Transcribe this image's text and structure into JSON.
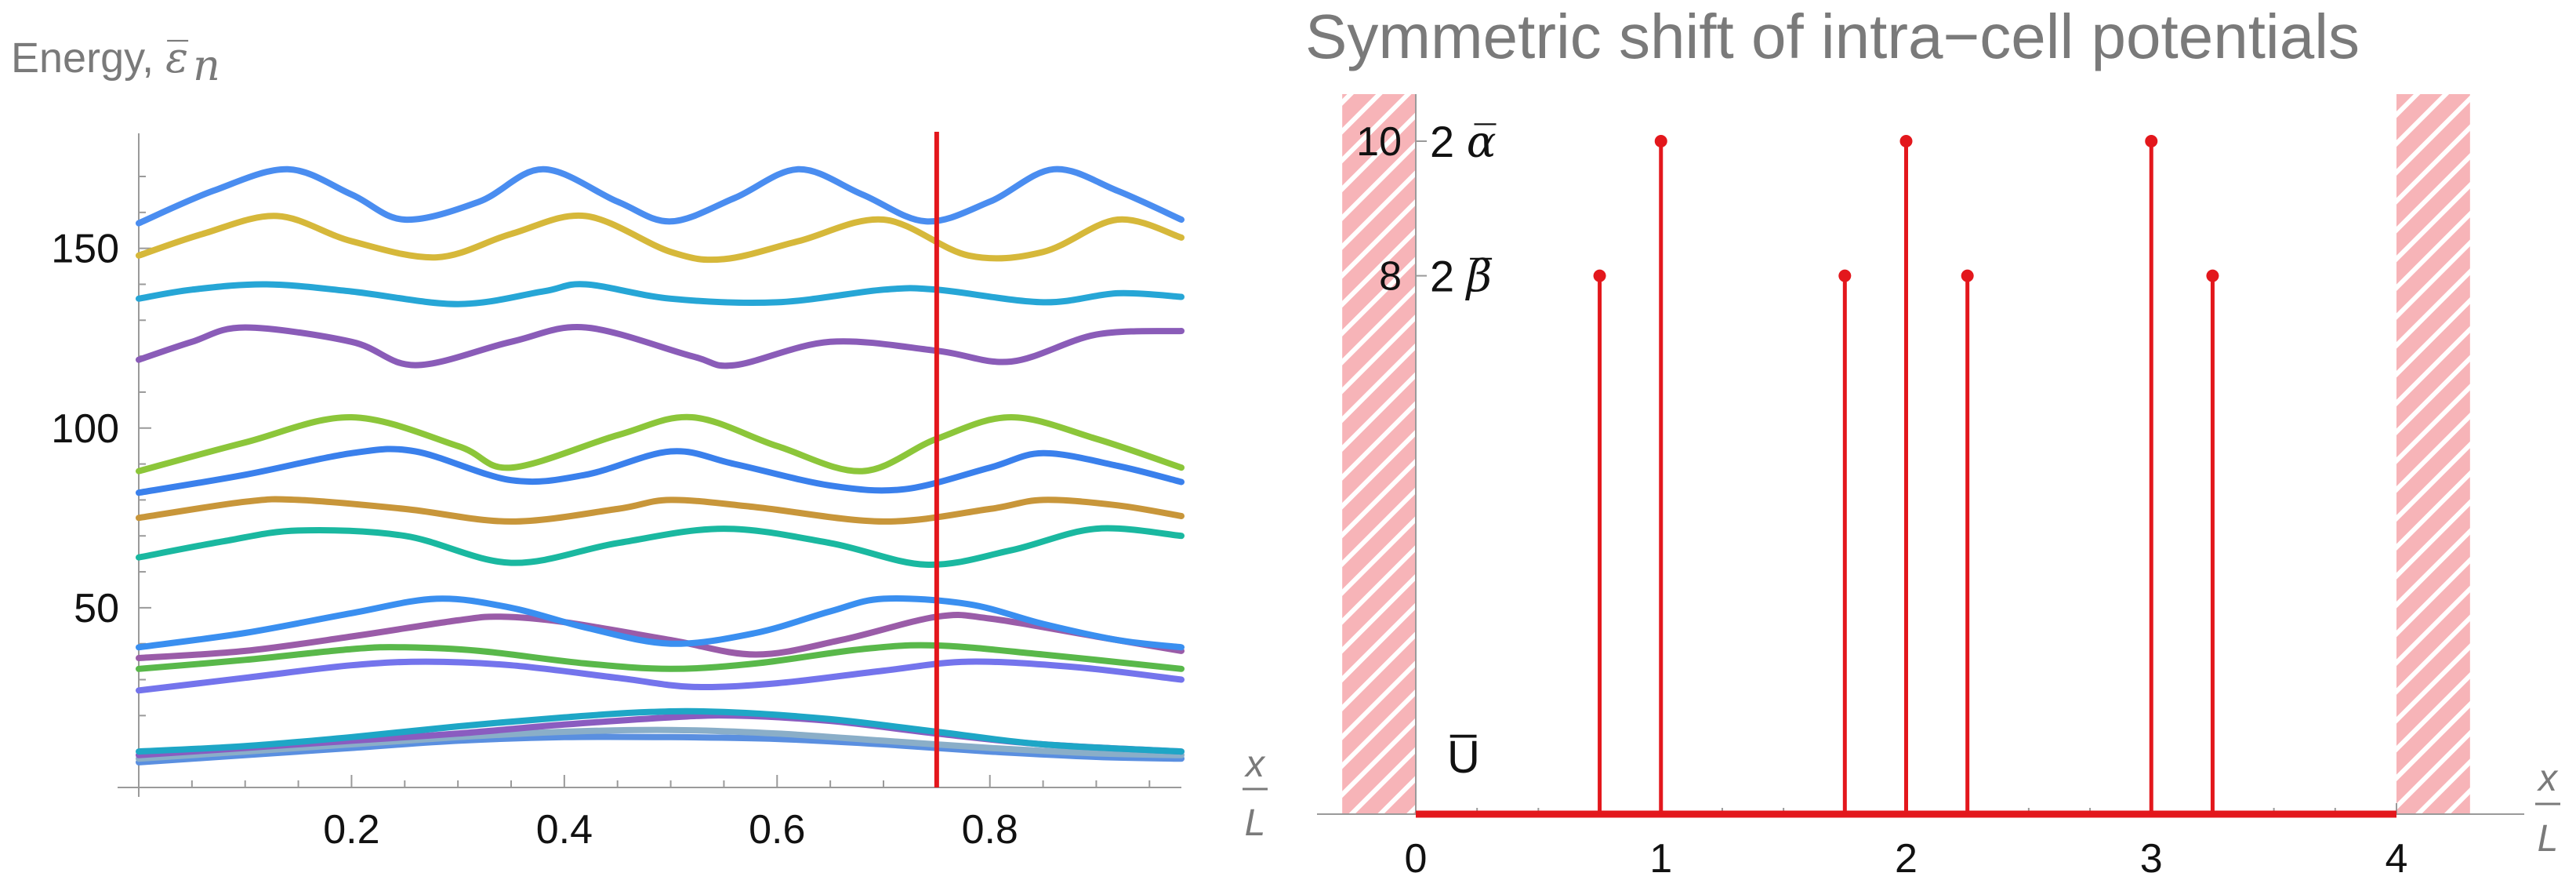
{
  "colors": {
    "red": "#e3171c",
    "wall": "#f7b4b8",
    "axis": "#9a9a9a",
    "text_gray": "#7a7a7a"
  },
  "chart_data": [
    {
      "type": "line",
      "title": "",
      "ylabel_prefix": "Energy, ",
      "ylabel_symbol": "ε̅",
      "ylabel_sub": "n",
      "xlabel_num": "x",
      "xlabel_den": "L",
      "xlim": [
        0,
        0.98
      ],
      "ylim": [
        0,
        182
      ],
      "xticks": [
        0.2,
        0.4,
        0.6,
        0.8
      ],
      "xtick_labels": [
        "0.2",
        "0.4",
        "0.6",
        "0.8"
      ],
      "yticks": [
        50,
        100,
        150
      ],
      "ytick_labels": [
        "50",
        "100",
        "150"
      ],
      "marker_x": 0.75,
      "marker_color": "#e3171c",
      "series": [
        {
          "name": "band1",
          "color": "#5a8fe0",
          "points": [
            [
              0,
              7
            ],
            [
              0.1,
              9
            ],
            [
              0.2,
              11
            ],
            [
              0.3,
              13
            ],
            [
              0.4,
              14
            ],
            [
              0.5,
              14
            ],
            [
              0.6,
              13.5
            ],
            [
              0.7,
              12
            ],
            [
              0.8,
              10
            ],
            [
              0.9,
              8.5
            ],
            [
              0.98,
              8
            ]
          ]
        },
        {
          "name": "band2",
          "color": "#8aaec8",
          "points": [
            [
              0,
              8
            ],
            [
              0.1,
              10
            ],
            [
              0.2,
              12
            ],
            [
              0.3,
              14
            ],
            [
              0.4,
              15.5
            ],
            [
              0.5,
              16
            ],
            [
              0.6,
              15
            ],
            [
              0.7,
              13
            ],
            [
              0.8,
              11
            ],
            [
              0.9,
              9.5
            ],
            [
              0.98,
              9
            ]
          ]
        },
        {
          "name": "band3",
          "color": "#8a5cc0",
          "points": [
            [
              0,
              9
            ],
            [
              0.1,
              11
            ],
            [
              0.2,
              13
            ],
            [
              0.3,
              15
            ],
            [
              0.4,
              17.5
            ],
            [
              0.5,
              19.5
            ],
            [
              0.56,
              20
            ],
            [
              0.65,
              18.5
            ],
            [
              0.75,
              15
            ],
            [
              0.85,
              12
            ],
            [
              0.98,
              10
            ]
          ]
        },
        {
          "name": "band4",
          "color": "#1ea6c6",
          "points": [
            [
              0,
              10
            ],
            [
              0.1,
              11.5
            ],
            [
              0.2,
              14
            ],
            [
              0.3,
              17
            ],
            [
              0.4,
              19.5
            ],
            [
              0.48,
              21
            ],
            [
              0.55,
              21
            ],
            [
              0.65,
              19
            ],
            [
              0.75,
              15.5
            ],
            [
              0.85,
              12
            ],
            [
              0.98,
              10
            ]
          ]
        },
        {
          "name": "band5",
          "color": "#7474ec",
          "points": [
            [
              0,
              27
            ],
            [
              0.1,
              30.5
            ],
            [
              0.2,
              34
            ],
            [
              0.27,
              35
            ],
            [
              0.35,
              34
            ],
            [
              0.45,
              30.5
            ],
            [
              0.52,
              28
            ],
            [
              0.6,
              29
            ],
            [
              0.7,
              32.5
            ],
            [
              0.78,
              35
            ],
            [
              0.88,
              33.5
            ],
            [
              0.98,
              30
            ]
          ]
        },
        {
          "name": "band6",
          "color": "#59b84a",
          "points": [
            [
              0,
              33
            ],
            [
              0.1,
              35.5
            ],
            [
              0.2,
              38.5
            ],
            [
              0.25,
              39
            ],
            [
              0.32,
              38
            ],
            [
              0.42,
              34.5
            ],
            [
              0.5,
              33
            ],
            [
              0.58,
              34.5
            ],
            [
              0.68,
              38.5
            ],
            [
              0.75,
              39.5
            ],
            [
              0.85,
              37
            ],
            [
              0.98,
              33
            ]
          ]
        },
        {
          "name": "band7",
          "color": "#9a5ca8",
          "points": [
            [
              0,
              36
            ],
            [
              0.1,
              38
            ],
            [
              0.2,
              42
            ],
            [
              0.3,
              46.5
            ],
            [
              0.34,
              47.5
            ],
            [
              0.4,
              46
            ],
            [
              0.5,
              41
            ],
            [
              0.58,
              37
            ],
            [
              0.66,
              41
            ],
            [
              0.75,
              47.5
            ],
            [
              0.8,
              47
            ],
            [
              0.9,
              42
            ],
            [
              0.98,
              38
            ]
          ]
        },
        {
          "name": "band8",
          "color": "#3a8ff0",
          "points": [
            [
              0,
              39
            ],
            [
              0.1,
              43
            ],
            [
              0.2,
              48.5
            ],
            [
              0.28,
              52.5
            ],
            [
              0.35,
              50
            ],
            [
              0.42,
              44.5
            ],
            [
              0.5,
              40
            ],
            [
              0.58,
              43
            ],
            [
              0.65,
              49
            ],
            [
              0.7,
              52.5
            ],
            [
              0.78,
              51
            ],
            [
              0.85,
              45.5
            ],
            [
              0.92,
              41
            ],
            [
              0.98,
              39
            ]
          ]
        },
        {
          "name": "band9",
          "color": "#1ab8a0",
          "points": [
            [
              0,
              64
            ],
            [
              0.08,
              68.5
            ],
            [
              0.15,
              71.5
            ],
            [
              0.25,
              70
            ],
            [
              0.35,
              62.5
            ],
            [
              0.45,
              68
            ],
            [
              0.55,
              72
            ],
            [
              0.65,
              68
            ],
            [
              0.74,
              62
            ],
            [
              0.82,
              66
            ],
            [
              0.9,
              72
            ],
            [
              0.98,
              70
            ]
          ]
        },
        {
          "name": "band10",
          "color": "#c8963a",
          "points": [
            [
              0,
              75
            ],
            [
              0.1,
              79.5
            ],
            [
              0.15,
              80
            ],
            [
              0.25,
              77.5
            ],
            [
              0.35,
              74
            ],
            [
              0.45,
              77.5
            ],
            [
              0.5,
              80
            ],
            [
              0.58,
              78
            ],
            [
              0.7,
              74
            ],
            [
              0.8,
              77.5
            ],
            [
              0.85,
              80
            ],
            [
              0.92,
              78.5
            ],
            [
              0.98,
              75.5
            ]
          ]
        },
        {
          "name": "band11",
          "color": "#3a80ec",
          "points": [
            [
              0,
              82
            ],
            [
              0.1,
              87
            ],
            [
              0.2,
              93
            ],
            [
              0.26,
              93.5
            ],
            [
              0.35,
              85.5
            ],
            [
              0.42,
              87
            ],
            [
              0.5,
              93.5
            ],
            [
              0.56,
              90
            ],
            [
              0.65,
              84
            ],
            [
              0.72,
              83
            ],
            [
              0.8,
              89
            ],
            [
              0.85,
              93
            ],
            [
              0.92,
              89.5
            ],
            [
              0.98,
              85
            ]
          ]
        },
        {
          "name": "band12",
          "color": "#8cc63a",
          "points": [
            [
              0,
              88
            ],
            [
              0.1,
              96
            ],
            [
              0.2,
              103
            ],
            [
              0.3,
              95
            ],
            [
              0.35,
              89
            ],
            [
              0.45,
              98
            ],
            [
              0.52,
              103
            ],
            [
              0.6,
              95
            ],
            [
              0.68,
              88
            ],
            [
              0.75,
              97
            ],
            [
              0.82,
              103
            ],
            [
              0.9,
              97
            ],
            [
              0.98,
              89
            ]
          ]
        },
        {
          "name": "band13",
          "color": "#8a5cb8",
          "points": [
            [
              0,
              119
            ],
            [
              0.05,
              124
            ],
            [
              0.1,
              128
            ],
            [
              0.2,
              124
            ],
            [
              0.26,
              117.5
            ],
            [
              0.35,
              124
            ],
            [
              0.42,
              128
            ],
            [
              0.52,
              120
            ],
            [
              0.56,
              117.5
            ],
            [
              0.65,
              124
            ],
            [
              0.75,
              121.5
            ],
            [
              0.82,
              118.5
            ],
            [
              0.9,
              126
            ],
            [
              0.98,
              127
            ]
          ]
        },
        {
          "name": "band14",
          "color": "#26a6d6",
          "points": [
            [
              0,
              136
            ],
            [
              0.05,
              138.5
            ],
            [
              0.12,
              140
            ],
            [
              0.2,
              138
            ],
            [
              0.3,
              134.5
            ],
            [
              0.38,
              138
            ],
            [
              0.42,
              140
            ],
            [
              0.5,
              136
            ],
            [
              0.6,
              135
            ],
            [
              0.7,
              138.5
            ],
            [
              0.75,
              138.5
            ],
            [
              0.85,
              135
            ],
            [
              0.92,
              137.5
            ],
            [
              0.98,
              136.5
            ]
          ]
        },
        {
          "name": "band15",
          "color": "#d6b83a",
          "points": [
            [
              0,
              148
            ],
            [
              0.06,
              154
            ],
            [
              0.13,
              159
            ],
            [
              0.2,
              152
            ],
            [
              0.28,
              147.5
            ],
            [
              0.35,
              154
            ],
            [
              0.42,
              159
            ],
            [
              0.5,
              149
            ],
            [
              0.55,
              147
            ],
            [
              0.62,
              152
            ],
            [
              0.7,
              158
            ],
            [
              0.78,
              148
            ],
            [
              0.85,
              149
            ],
            [
              0.92,
              158
            ],
            [
              0.98,
              153
            ]
          ]
        },
        {
          "name": "band16",
          "color": "#4a8df0",
          "points": [
            [
              0,
              157
            ],
            [
              0.07,
              166
            ],
            [
              0.14,
              172
            ],
            [
              0.2,
              165
            ],
            [
              0.25,
              158
            ],
            [
              0.32,
              163
            ],
            [
              0.38,
              172
            ],
            [
              0.45,
              163
            ],
            [
              0.5,
              157.5
            ],
            [
              0.56,
              164
            ],
            [
              0.62,
              172
            ],
            [
              0.68,
              165
            ],
            [
              0.74,
              157.5
            ],
            [
              0.8,
              163
            ],
            [
              0.86,
              172
            ],
            [
              0.92,
              166
            ],
            [
              0.98,
              158
            ]
          ]
        }
      ]
    },
    {
      "type": "stem",
      "title": "Symmetric shift of intra−cell potentials",
      "xlabel_num": "x",
      "xlabel_den": "L",
      "xlim": [
        -0.3,
        4.3
      ],
      "ylim": [
        0,
        10.5
      ],
      "xticks": [
        0,
        1,
        2,
        3,
        4
      ],
      "xtick_labels": [
        "0",
        "1",
        "2",
        "3",
        "4"
      ],
      "yticks": [
        10,
        8
      ],
      "ytick_labels": [
        "10",
        "8"
      ],
      "level_labels": [
        {
          "value": 10,
          "prefix": "2 ",
          "symbol": "α̅"
        },
        {
          "value": 8,
          "prefix": "2 ",
          "symbol": "β̅"
        }
      ],
      "baseline_label": "U̅",
      "walls": [
        [
          -0.3,
          0
        ],
        [
          4,
          4.3
        ]
      ],
      "stems": [
        {
          "x": 0.75,
          "y": 8
        },
        {
          "x": 1.0,
          "y": 10
        },
        {
          "x": 1.75,
          "y": 8
        },
        {
          "x": 2.0,
          "y": 10
        },
        {
          "x": 2.25,
          "y": 8
        },
        {
          "x": 3.0,
          "y": 10
        },
        {
          "x": 3.25,
          "y": 8
        }
      ]
    }
  ]
}
